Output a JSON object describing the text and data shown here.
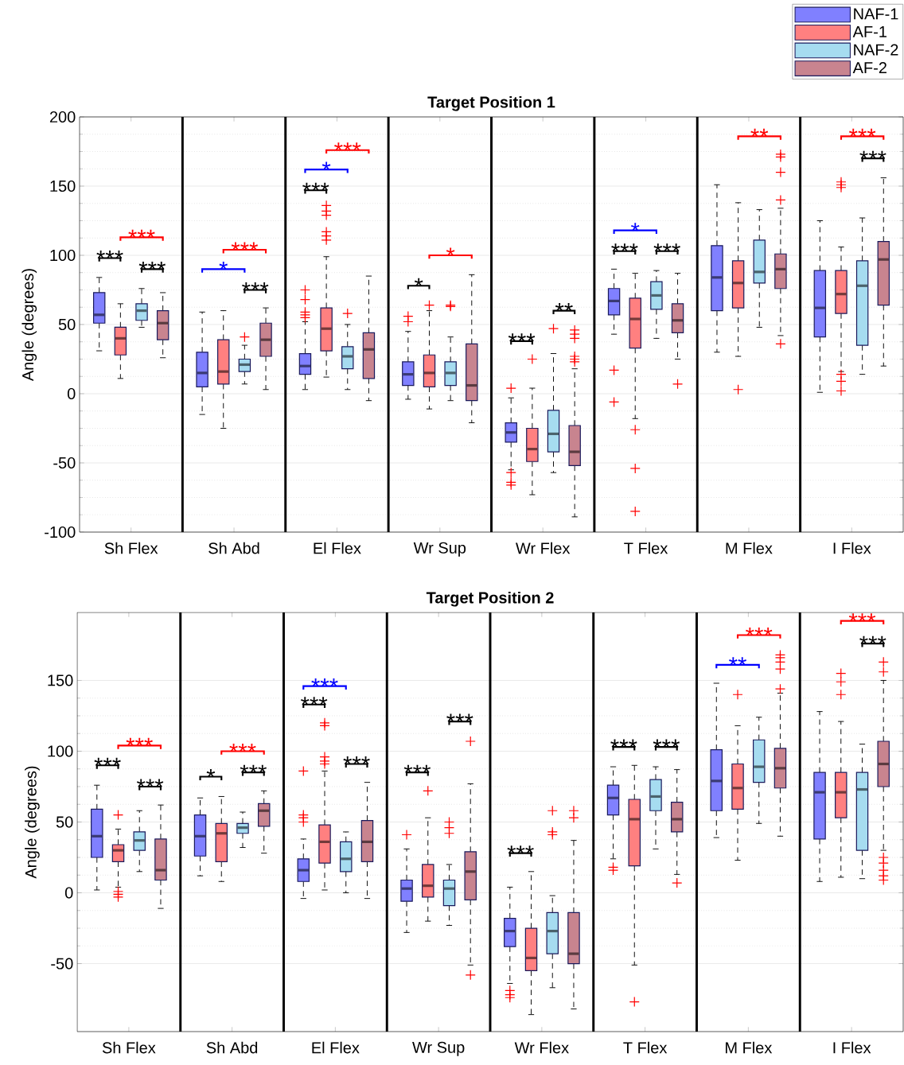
{
  "chart_data": [
    {
      "type": "box",
      "title": "Target Position 1",
      "ylabel": "Angle (degrees)",
      "categories": [
        "Sh Flex",
        "Sh Abd",
        "El Flex",
        "Wr Sup",
        "Wr Flex",
        "T Flex",
        "M Flex",
        "I Flex"
      ],
      "ylim": [
        -100,
        200
      ],
      "yticks": [
        -100,
        -50,
        0,
        50,
        100,
        150,
        200
      ],
      "grid": "y",
      "legend": "top right",
      "series": [
        {
          "name": "NAF-1",
          "color": "#8080ff",
          "boxes": [
            {
              "low": 31,
              "q1": 51,
              "median": 57,
              "q3": 73,
              "high": 84
            },
            {
              "low": -15,
              "q1": 5,
              "median": 15,
              "q3": 30,
              "high": 59
            },
            {
              "low": 3,
              "q1": 14,
              "median": 20,
              "q3": 29,
              "high": 52,
              "outliers": [
                75,
                68,
                59,
                57,
                55
              ]
            },
            {
              "low": -4,
              "q1": 6,
              "median": 14,
              "q3": 23,
              "high": 45,
              "outliers": [
                56,
                52
              ]
            },
            {
              "low": -55,
              "q1": -35,
              "median": -28,
              "q3": -21,
              "high": -3,
              "outliers": [
                4,
                -57,
                -64,
                -66
              ]
            },
            {
              "low": 43,
              "q1": 57,
              "median": 67,
              "q3": 76,
              "high": 90,
              "outliers": [
                17,
                -6
              ]
            },
            {
              "low": 30,
              "q1": 60,
              "median": 84,
              "q3": 107,
              "high": 151
            },
            {
              "low": 1,
              "q1": 41,
              "median": 62,
              "q3": 89,
              "high": 125
            }
          ]
        },
        {
          "name": "AF-1",
          "color": "#ff8080",
          "boxes": [
            {
              "low": 11,
              "q1": 28,
              "median": 40,
              "q3": 48,
              "high": 65
            },
            {
              "low": -25,
              "q1": 7,
              "median": 16,
              "q3": 39,
              "high": 60
            },
            {
              "low": 12,
              "q1": 31,
              "median": 47,
              "q3": 62,
              "high": 99,
              "outliers": [
                136,
                132,
                129,
                117,
                114,
                111
              ]
            },
            {
              "low": -11,
              "q1": 5,
              "median": 15,
              "q3": 28,
              "high": 60,
              "outliers": [
                64
              ]
            },
            {
              "low": -73,
              "q1": -49,
              "median": -40,
              "q3": -25,
              "high": 4,
              "outliers": [
                25
              ]
            },
            {
              "low": -18,
              "q1": 33,
              "median": 54,
              "q3": 69,
              "high": 87,
              "outliers": [
                -26,
                -54,
                -85
              ]
            },
            {
              "low": 27,
              "q1": 62,
              "median": 80,
              "q3": 96,
              "high": 138,
              "outliers": [
                3
              ]
            },
            {
              "low": 16,
              "q1": 58,
              "median": 72,
              "q3": 89,
              "high": 106,
              "outliers": [
                14,
                9,
                2,
                153,
                151,
                149
              ]
            }
          ]
        },
        {
          "name": "NAF-2",
          "color": "#a6dcf0",
          "boxes": [
            {
              "low": 48,
              "q1": 53,
              "median": 60,
              "q3": 65,
              "high": 76
            },
            {
              "low": 7,
              "q1": 16,
              "median": 21,
              "q3": 25,
              "high": 35,
              "outliers": [
                41
              ]
            },
            {
              "low": 3,
              "q1": 18,
              "median": 27,
              "q3": 34,
              "high": 50,
              "outliers": [
                58
              ]
            },
            {
              "low": -5,
              "q1": 6,
              "median": 15,
              "q3": 23,
              "high": 41,
              "outliers": [
                63,
                64
              ]
            },
            {
              "low": -57,
              "q1": -42,
              "median": -29,
              "q3": -12,
              "high": 29,
              "outliers": [
                47
              ]
            },
            {
              "low": 40,
              "q1": 61,
              "median": 71,
              "q3": 81,
              "high": 89
            },
            {
              "low": 48,
              "q1": 80,
              "median": 88,
              "q3": 111,
              "high": 133
            },
            {
              "low": 14,
              "q1": 35,
              "median": 78,
              "q3": 96,
              "high": 127
            }
          ]
        },
        {
          "name": "AF-2",
          "color": "#c8848f",
          "boxes": [
            {
              "low": 26,
              "q1": 39,
              "median": 51,
              "q3": 60,
              "high": 73
            },
            {
              "low": 3,
              "q1": 27,
              "median": 39,
              "q3": 51,
              "high": 62
            },
            {
              "low": -5,
              "q1": 11,
              "median": 32,
              "q3": 44,
              "high": 85
            },
            {
              "low": -21,
              "q1": -5,
              "median": 6,
              "q3": 36,
              "high": 86
            },
            {
              "low": -89,
              "q1": -52,
              "median": -42,
              "q3": -23,
              "high": 18,
              "outliers": [
                46,
                43,
                40,
                27,
                25,
                23
              ]
            },
            {
              "low": 25,
              "q1": 44,
              "median": 53,
              "q3": 65,
              "high": 87,
              "outliers": [
                7
              ]
            },
            {
              "low": 42,
              "q1": 76,
              "median": 90,
              "q3": 101,
              "high": 134,
              "outliers": [
                36,
                140,
                160,
                171,
                173
              ]
            },
            {
              "low": 20,
              "q1": 64,
              "median": 97,
              "q3": 110,
              "high": 156
            }
          ]
        }
      ],
      "annotations": [
        "***",
        "***",
        "***",
        "*",
        "***",
        "***",
        "***",
        "*",
        "***",
        "*",
        "*",
        "***",
        "**",
        "***",
        "***",
        "*",
        "**",
        "***",
        "***"
      ]
    },
    {
      "type": "box",
      "title": "Target Position 2",
      "ylabel": "Angle (degrees)",
      "categories": [
        "Sh Flex",
        "Sh Abd",
        "El Flex",
        "Wr Sup",
        "Wr Flex",
        "T Flex",
        "M Flex",
        "I Flex"
      ],
      "ylim": [
        -98,
        198
      ],
      "yticks": [
        -50,
        0,
        50,
        100,
        150
      ],
      "grid": "y",
      "series": [
        {
          "color": "#8080ff",
          "boxes": [
            {
              "low": 2,
              "q1": 25,
              "median": 40,
              "q3": 59,
              "high": 76
            },
            {
              "low": 12,
              "q1": 26,
              "median": 40,
              "q3": 55,
              "high": 67
            },
            {
              "low": -4,
              "q1": 8,
              "median": 16,
              "q3": 24,
              "high": 38,
              "outliers": [
                86,
                55,
                53,
                50
              ]
            },
            {
              "low": -28,
              "q1": -6,
              "median": 3,
              "q3": 9,
              "high": 31,
              "outliers": [
                41
              ]
            },
            {
              "low": -64,
              "q1": -38,
              "median": -27,
              "q3": -18,
              "high": 4,
              "outliers": [
                -69,
                -72,
                -74
              ]
            },
            {
              "low": 24,
              "q1": 55,
              "median": 67,
              "q3": 76,
              "high": 89,
              "outliers": [
                18,
                16
              ]
            },
            {
              "low": 39,
              "q1": 58,
              "median": 79,
              "q3": 101,
              "high": 148
            },
            {
              "low": 8,
              "q1": 38,
              "median": 71,
              "q3": 85,
              "high": 128
            }
          ]
        },
        {
          "color": "#ff8080",
          "boxes": [
            {
              "low": 4,
              "q1": 22,
              "median": 30,
              "q3": 34,
              "high": 45,
              "outliers": [
                55,
                1,
                -1,
                -3
              ]
            },
            {
              "low": 8,
              "q1": 22,
              "median": 42,
              "q3": 49,
              "high": 68
            },
            {
              "low": 2,
              "q1": 21,
              "median": 36,
              "q3": 48,
              "high": 86,
              "outliers": [
                120,
                118,
                96,
                93,
                91
              ]
            },
            {
              "low": -20,
              "q1": -3,
              "median": 5,
              "q3": 20,
              "high": 53,
              "outliers": [
                72
              ]
            },
            {
              "low": -86,
              "q1": -55,
              "median": -46,
              "q3": -25,
              "high": 15
            },
            {
              "low": -51,
              "q1": 19,
              "median": 52,
              "q3": 66,
              "high": 90,
              "outliers": [
                -77
              ]
            },
            {
              "low": 23,
              "q1": 59,
              "median": 74,
              "q3": 91,
              "high": 118,
              "outliers": [
                140
              ]
            },
            {
              "low": 11,
              "q1": 53,
              "median": 71,
              "q3": 85,
              "high": 121,
              "outliers": [
                155,
                149,
                140
              ]
            }
          ]
        },
        {
          "color": "#a6dcf0",
          "boxes": [
            {
              "low": 15,
              "q1": 30,
              "median": 37,
              "q3": 43,
              "high": 58
            },
            {
              "low": 32,
              "q1": 42,
              "median": 46,
              "q3": 49,
              "high": 57
            },
            {
              "low": 0,
              "q1": 15,
              "median": 24,
              "q3": 36,
              "high": 43
            },
            {
              "low": -23,
              "q1": -9,
              "median": 3,
              "q3": 9,
              "high": 20,
              "outliers": [
                50,
                46,
                42
              ]
            },
            {
              "low": -67,
              "q1": -43,
              "median": -27,
              "q3": -14,
              "high": -2,
              "outliers": [
                58,
                43,
                41
              ]
            },
            {
              "low": 31,
              "q1": 58,
              "median": 68,
              "q3": 80,
              "high": 89
            },
            {
              "low": 49,
              "q1": 78,
              "median": 89,
              "q3": 108,
              "high": 124
            },
            {
              "low": 10,
              "q1": 30,
              "median": 73,
              "q3": 85,
              "high": 105
            }
          ]
        },
        {
          "color": "#c8848f",
          "boxes": [
            {
              "low": -11,
              "q1": 9,
              "median": 16,
              "q3": 38,
              "high": 62
            },
            {
              "low": 28,
              "q1": 47,
              "median": 58,
              "q3": 63,
              "high": 72
            },
            {
              "low": -4,
              "q1": 22,
              "median": 36,
              "q3": 51,
              "high": 78
            },
            {
              "low": -51,
              "q1": -5,
              "median": 15,
              "q3": 29,
              "high": 77,
              "outliers": [
                107,
                -58
              ]
            },
            {
              "low": -82,
              "q1": -50,
              "median": -43,
              "q3": -14,
              "high": 37,
              "outliers": [
                58,
                53
              ]
            },
            {
              "low": 13,
              "q1": 43,
              "median": 52,
              "q3": 64,
              "high": 87,
              "outliers": [
                7
              ]
            },
            {
              "low": 40,
              "q1": 74,
              "median": 88,
              "q3": 102,
              "high": 141,
              "outliers": [
                144,
                158,
                163,
                166,
                168
              ]
            },
            {
              "low": 30,
              "q1": 75,
              "median": 91,
              "q3": 107,
              "high": 150,
              "outliers": [
                163,
                156,
                25,
                21,
                16,
                12,
                9
              ]
            }
          ]
        }
      ],
      "annotations": [
        "***",
        "***",
        "***",
        "*",
        "***",
        "***",
        "***",
        "***",
        "***",
        "***",
        "***",
        "***",
        "***",
        "***",
        "**",
        "***",
        "***",
        "***"
      ]
    }
  ]
}
